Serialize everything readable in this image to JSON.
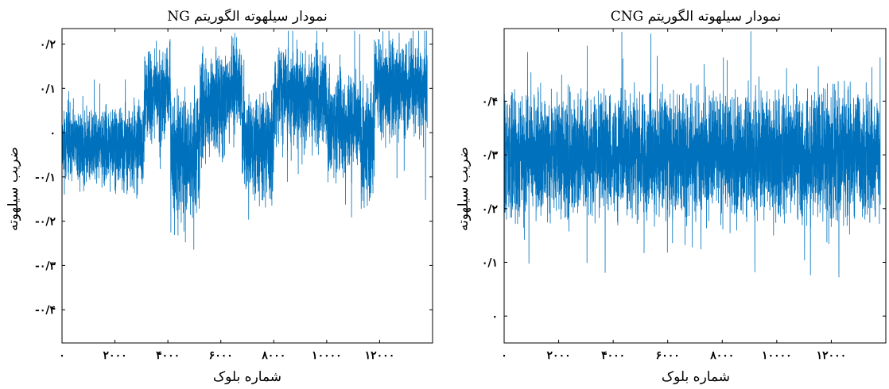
{
  "chart_data": [
    {
      "type": "line",
      "title": "نمودار سیلهوته الگوریتم NG",
      "xlabel": "شماره بلوک",
      "ylabel": "ضریب سیلهوته",
      "xlim": [
        0,
        14000
      ],
      "ylim": [
        -0.475,
        0.235
      ],
      "xticks": [
        0,
        2000,
        4000,
        6000,
        8000,
        10000,
        12000
      ],
      "xtick_labels": [
        "۰",
        "۲۰۰۰",
        "۴۰۰۰",
        "۶۰۰۰",
        "۸۰۰۰",
        "۱۰۰۰۰",
        "۱۲۰۰۰"
      ],
      "yticks": [
        0.2,
        0.1,
        0,
        -0.1,
        -0.2,
        -0.3,
        -0.4
      ],
      "ytick_labels": [
        "۰/۲",
        "۰/۱",
        "۰",
        "-۰/۱",
        "-۰/۲",
        "-۰/۳",
        "-۰/۴"
      ],
      "n_points": 13800,
      "color": "#0072BD",
      "segments": [
        {
          "x_start": 0,
          "x_end": 3100,
          "center": -0.03,
          "spread": 0.12
        },
        {
          "x_start": 3100,
          "x_end": 4100,
          "center": 0.09,
          "spread": 0.14
        },
        {
          "x_start": 4100,
          "x_end": 5200,
          "center": -0.05,
          "spread": 0.2
        },
        {
          "x_start": 5200,
          "x_end": 6200,
          "center": 0.06,
          "spread": 0.16
        },
        {
          "x_start": 6200,
          "x_end": 6800,
          "center": 0.1,
          "spread": 0.14
        },
        {
          "x_start": 6800,
          "x_end": 8000,
          "center": -0.03,
          "spread": 0.16
        },
        {
          "x_start": 8000,
          "x_end": 10000,
          "center": 0.08,
          "spread": 0.15
        },
        {
          "x_start": 10000,
          "x_end": 11300,
          "center": 0.02,
          "spread": 0.16
        },
        {
          "x_start": 11300,
          "x_end": 11800,
          "center": -0.03,
          "spread": 0.2
        },
        {
          "x_start": 11800,
          "x_end": 13800,
          "center": 0.1,
          "spread": 0.15
        }
      ]
    },
    {
      "type": "line",
      "title": "نمودار سیلهوته الگوریتم CNG",
      "xlabel": "شماره بلوک",
      "ylabel": "ضریب سیلهوته",
      "xlim": [
        0,
        14000
      ],
      "ylim": [
        -0.05,
        0.535
      ],
      "xticks": [
        0,
        2000,
        4000,
        6000,
        8000,
        10000,
        12000
      ],
      "xtick_labels": [
        "۰",
        "۲۰۰۰",
        "۴۰۰۰",
        "۶۰۰۰",
        "۸۰۰۰",
        "۱۰۰۰۰",
        "۱۲۰۰۰"
      ],
      "yticks": [
        0.4,
        0.3,
        0.2,
        0.1,
        0
      ],
      "ytick_labels": [
        "۰/۴",
        "۰/۳",
        "۰/۲",
        "۰/۱",
        "۰"
      ],
      "n_points": 13800,
      "color": "#0072BD",
      "segments": [
        {
          "x_start": 0,
          "x_end": 13800,
          "center": 0.3,
          "spread": 0.16
        }
      ]
    }
  ]
}
